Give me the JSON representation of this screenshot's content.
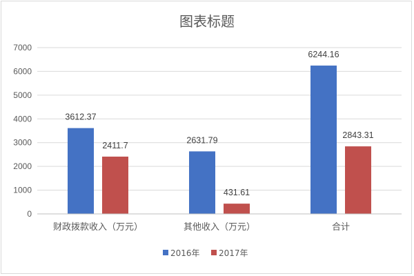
{
  "chart_data": {
    "type": "bar",
    "title": "图表标题",
    "categories": [
      "财政拨款收入（万元）",
      "其他收入（万元）",
      "合计"
    ],
    "series": [
      {
        "name": "2016年",
        "color": "#4472c4",
        "values": [
          3612.37,
          2631.79,
          6244.16
        ],
        "labels": [
          "3612.37",
          "2631.79",
          "6244.16"
        ]
      },
      {
        "name": "2017年",
        "color": "#c0504d",
        "values": [
          2411.7,
          431.61,
          2843.31
        ],
        "labels": [
          "2411.7",
          "431.61",
          "2843.31"
        ]
      }
    ],
    "ylim": [
      0,
      7000
    ],
    "yticks": [
      0,
      1000,
      2000,
      3000,
      4000,
      5000,
      6000,
      7000
    ],
    "grid": true,
    "legend_position": "bottom"
  }
}
